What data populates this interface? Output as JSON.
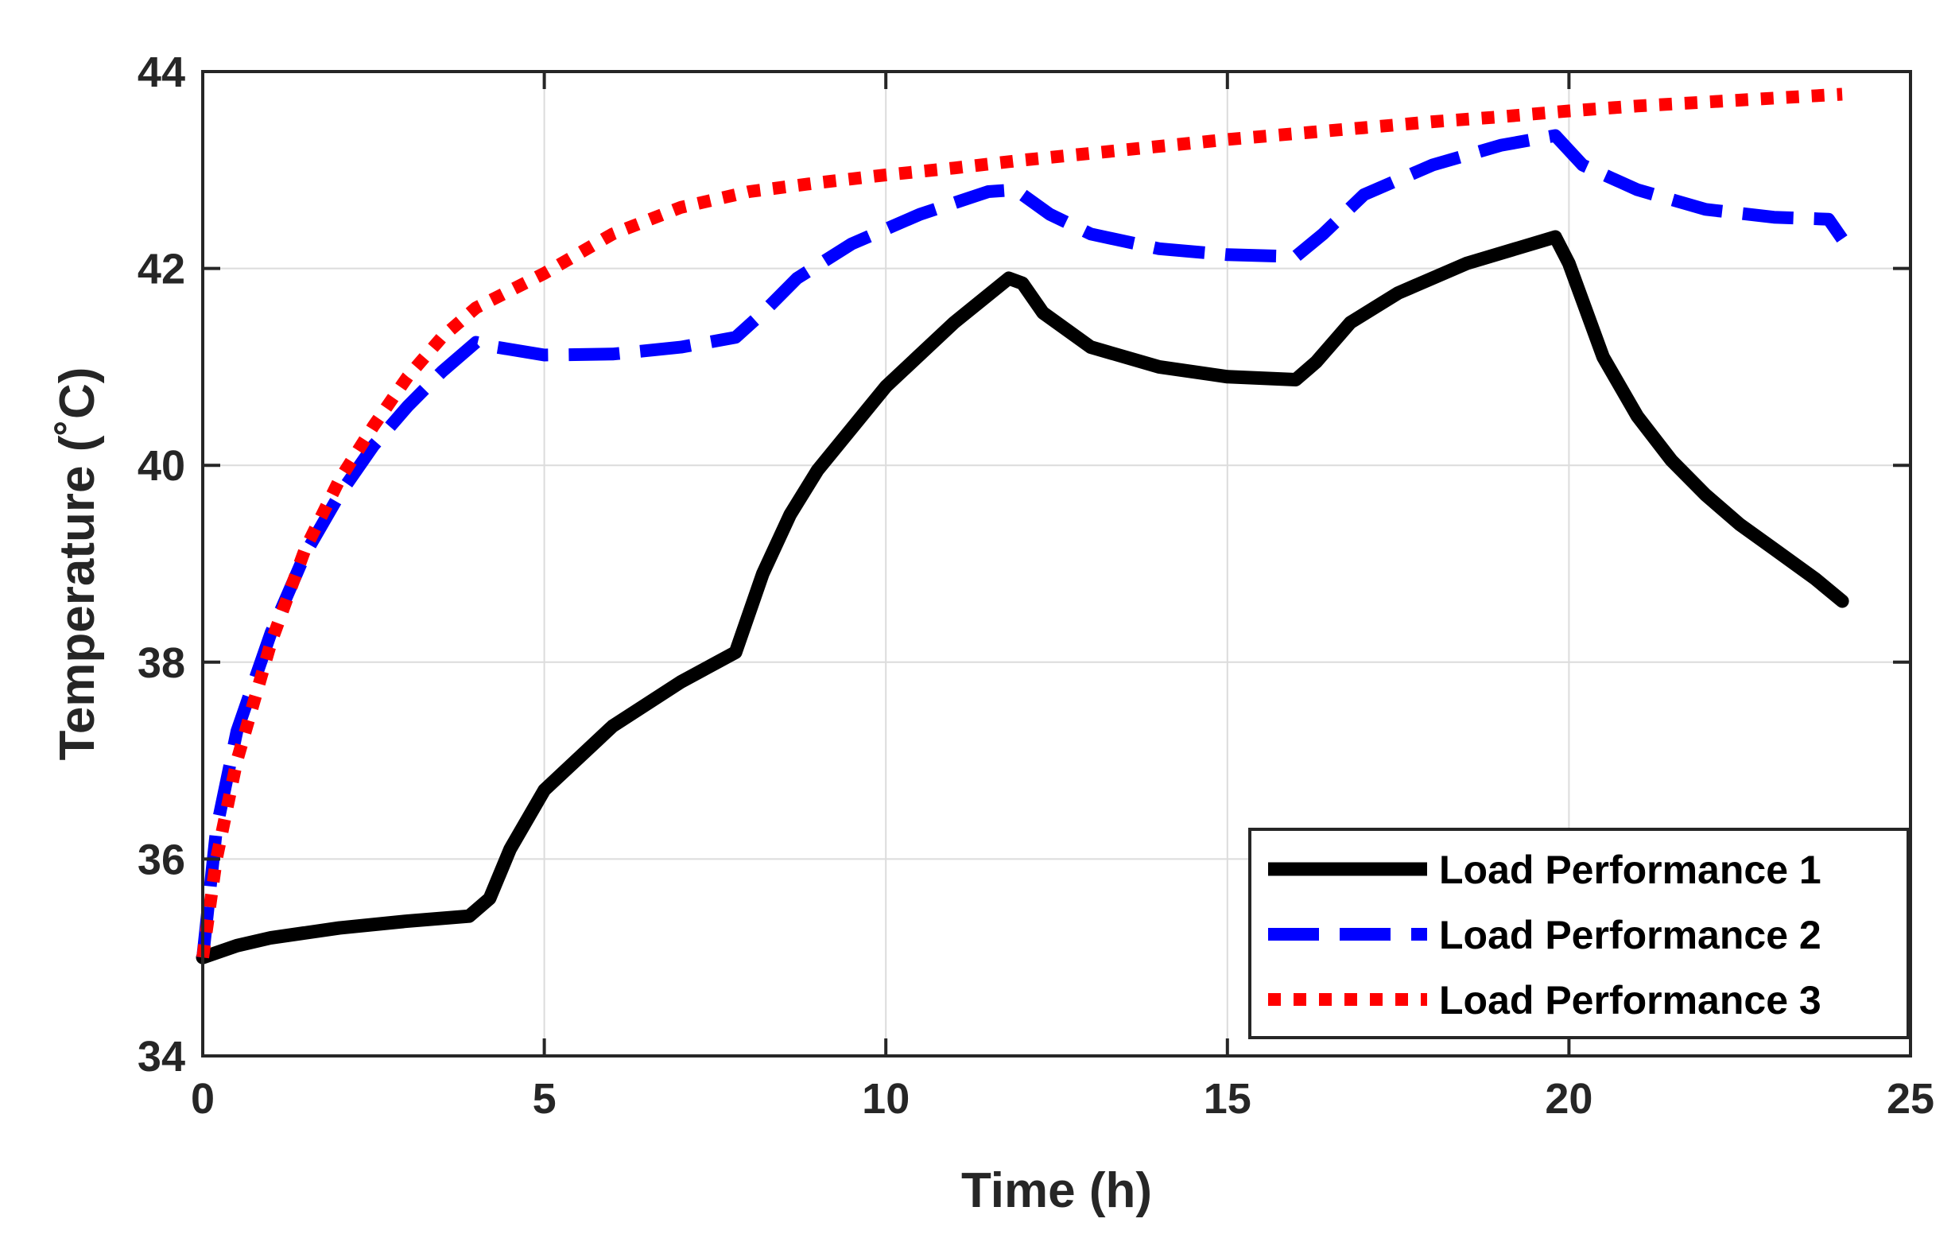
{
  "chart_data": {
    "type": "line",
    "title": "",
    "xlabel": "Time (h)",
    "ylabel": "Temperature (˚C)",
    "xlim": [
      0,
      25
    ],
    "ylim": [
      34,
      44
    ],
    "xticks": [
      0,
      5,
      10,
      15,
      20,
      25
    ],
    "yticks": [
      34,
      36,
      38,
      40,
      42,
      44
    ],
    "grid": true,
    "legend_position": "bottom-right",
    "series": [
      {
        "name": "Load Performance 1",
        "color": "#000000",
        "style": "solid",
        "points": [
          [
            0,
            35.0
          ],
          [
            0.5,
            35.12
          ],
          [
            1,
            35.2
          ],
          [
            2,
            35.3
          ],
          [
            3,
            35.37
          ],
          [
            3.9,
            35.42
          ],
          [
            4.2,
            35.6
          ],
          [
            4.5,
            36.1
          ],
          [
            5,
            36.7
          ],
          [
            6,
            37.35
          ],
          [
            7,
            37.8
          ],
          [
            7.8,
            38.1
          ],
          [
            8.2,
            38.9
          ],
          [
            8.6,
            39.5
          ],
          [
            9,
            39.95
          ],
          [
            10,
            40.8
          ],
          [
            11,
            41.45
          ],
          [
            11.8,
            41.9
          ],
          [
            12.0,
            41.85
          ],
          [
            12.3,
            41.55
          ],
          [
            13,
            41.2
          ],
          [
            14,
            41.0
          ],
          [
            15,
            40.9
          ],
          [
            16,
            40.87
          ],
          [
            16.3,
            41.05
          ],
          [
            16.8,
            41.45
          ],
          [
            17.5,
            41.75
          ],
          [
            18.5,
            42.05
          ],
          [
            19.8,
            42.32
          ],
          [
            20.0,
            42.05
          ],
          [
            20.5,
            41.1
          ],
          [
            21,
            40.5
          ],
          [
            21.5,
            40.05
          ],
          [
            22,
            39.7
          ],
          [
            22.5,
            39.4
          ],
          [
            23,
            39.15
          ],
          [
            23.6,
            38.85
          ],
          [
            24,
            38.62
          ]
        ]
      },
      {
        "name": "Load Performance 2",
        "color": "#0000ff",
        "style": "dashed",
        "points": [
          [
            0,
            35.0
          ],
          [
            0.2,
            36.3
          ],
          [
            0.5,
            37.3
          ],
          [
            1,
            38.3
          ],
          [
            1.5,
            39.1
          ],
          [
            2,
            39.7
          ],
          [
            2.5,
            40.2
          ],
          [
            3,
            40.6
          ],
          [
            3.5,
            40.95
          ],
          [
            4,
            41.25
          ],
          [
            4.3,
            41.2
          ],
          [
            5,
            41.12
          ],
          [
            6,
            41.13
          ],
          [
            7,
            41.2
          ],
          [
            7.8,
            41.3
          ],
          [
            8.2,
            41.55
          ],
          [
            8.7,
            41.9
          ],
          [
            9.5,
            42.25
          ],
          [
            10.5,
            42.55
          ],
          [
            11.5,
            42.78
          ],
          [
            11.9,
            42.8
          ],
          [
            12.4,
            42.55
          ],
          [
            13,
            42.35
          ],
          [
            14,
            42.2
          ],
          [
            15,
            42.14
          ],
          [
            16,
            42.12
          ],
          [
            16.4,
            42.35
          ],
          [
            17,
            42.75
          ],
          [
            18,
            43.05
          ],
          [
            19,
            43.25
          ],
          [
            19.8,
            43.35
          ],
          [
            20.2,
            43.05
          ],
          [
            21,
            42.8
          ],
          [
            22,
            42.6
          ],
          [
            23,
            42.52
          ],
          [
            23.8,
            42.5
          ],
          [
            24,
            42.3
          ]
        ]
      },
      {
        "name": "Load Performance 3",
        "color": "#ff0000",
        "style": "dotted",
        "points": [
          [
            0,
            35.0
          ],
          [
            0.2,
            36.0
          ],
          [
            0.5,
            37.0
          ],
          [
            1,
            38.2
          ],
          [
            1.5,
            39.15
          ],
          [
            2,
            39.85
          ],
          [
            2.5,
            40.4
          ],
          [
            3,
            40.9
          ],
          [
            3.5,
            41.3
          ],
          [
            4,
            41.6
          ],
          [
            5,
            41.95
          ],
          [
            6,
            42.35
          ],
          [
            7,
            42.62
          ],
          [
            8,
            42.78
          ],
          [
            9,
            42.87
          ],
          [
            10,
            42.95
          ],
          [
            11,
            43.02
          ],
          [
            12,
            43.1
          ],
          [
            13,
            43.17
          ],
          [
            14,
            43.24
          ],
          [
            15,
            43.31
          ],
          [
            16,
            43.37
          ],
          [
            17,
            43.43
          ],
          [
            18,
            43.49
          ],
          [
            19,
            43.54
          ],
          [
            20,
            43.6
          ],
          [
            21,
            43.65
          ],
          [
            22,
            43.69
          ],
          [
            23,
            43.73
          ],
          [
            24,
            43.77
          ]
        ]
      }
    ]
  }
}
